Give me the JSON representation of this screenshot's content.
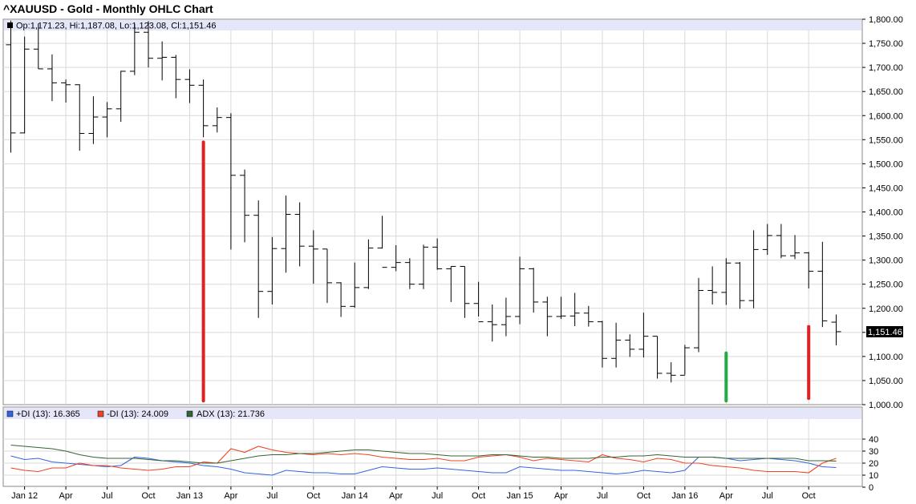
{
  "title": "^XAUUSD - Gold - Monthly OHLC Chart",
  "ohlc_readout": "Op:1,171.23, Hi:1,187.08, Lo:1,123.08, Cl:1,151.46",
  "last_price_label": "1,151.46",
  "colors": {
    "bar": "#000000",
    "grid": "#d9d9d9",
    "infobar": "#e6e6fa",
    "plus_di": "#3366dd",
    "minus_di": "#ee4422",
    "adx": "#336633",
    "marker_red": "#dd2222",
    "marker_green": "#22aa44"
  },
  "chart_data": [
    {
      "type": "ohlc",
      "title": "^XAUUSD - Gold - Monthly OHLC Chart",
      "ylim": [
        1000,
        1800
      ],
      "y_ticks": [
        "1,000.00",
        "1,050.00",
        "1,100.00",
        "1,150.00",
        "1,200.00",
        "1,250.00",
        "1,300.00",
        "1,350.00",
        "1,400.00",
        "1,450.00",
        "1,500.00",
        "1,550.00",
        "1,600.00",
        "1,650.00",
        "1,700.00",
        "1,750.00",
        "1,800.00"
      ],
      "x_labels": [
        "Jan 12",
        "Apr",
        "Jul",
        "Oct",
        "Jan 13",
        "Apr",
        "Jul",
        "Oct",
        "Jan 14",
        "Apr",
        "Jul",
        "Oct",
        "Jan 15",
        "Apr",
        "Jul",
        "Oct",
        "Jan 16",
        "Apr",
        "Jul",
        "Oct"
      ],
      "start_month": "2011-12",
      "bars": [
        [
          1747,
          1797,
          1523,
          1564
        ],
        [
          1564,
          1764,
          1563,
          1738
        ],
        [
          1738,
          1791,
          1697,
          1697
        ],
        [
          1697,
          1727,
          1630,
          1668
        ],
        [
          1668,
          1675,
          1627,
          1664
        ],
        [
          1664,
          1665,
          1527,
          1563
        ],
        [
          1563,
          1640,
          1541,
          1597
        ],
        [
          1597,
          1628,
          1555,
          1614
        ],
        [
          1614,
          1693,
          1587,
          1692
        ],
        [
          1692,
          1790,
          1684,
          1773
        ],
        [
          1773,
          1796,
          1700,
          1719
        ],
        [
          1719,
          1754,
          1673,
          1721
        ],
        [
          1721,
          1726,
          1636,
          1675
        ],
        [
          1675,
          1696,
          1626,
          1663
        ],
        [
          1663,
          1675,
          1555,
          1579
        ],
        [
          1579,
          1617,
          1565,
          1596
        ],
        [
          1596,
          1605,
          1322,
          1476
        ],
        [
          1476,
          1488,
          1337,
          1393
        ],
        [
          1393,
          1424,
          1180,
          1235
        ],
        [
          1235,
          1348,
          1208,
          1324
        ],
        [
          1324,
          1434,
          1274,
          1395
        ],
        [
          1395,
          1420,
          1287,
          1329
        ],
        [
          1329,
          1362,
          1251,
          1323
        ],
        [
          1323,
          1323,
          1211,
          1253
        ],
        [
          1253,
          1254,
          1182,
          1204
        ],
        [
          1204,
          1295,
          1201,
          1243
        ],
        [
          1243,
          1343,
          1240,
          1325
        ],
        [
          1325,
          1392,
          1324,
          1285
        ],
        [
          1285,
          1331,
          1277,
          1295
        ],
        [
          1295,
          1304,
          1240,
          1250
        ],
        [
          1250,
          1332,
          1240,
          1327
        ],
        [
          1327,
          1345,
          1280,
          1282
        ],
        [
          1282,
          1287,
          1213,
          1287
        ],
        [
          1287,
          1287,
          1180,
          1210
        ],
        [
          1210,
          1255,
          1183,
          1172
        ],
        [
          1172,
          1208,
          1131,
          1166
        ],
        [
          1166,
          1222,
          1142,
          1183
        ],
        [
          1183,
          1307,
          1167,
          1282
        ],
        [
          1282,
          1284,
          1191,
          1213
        ],
        [
          1213,
          1224,
          1142,
          1183
        ],
        [
          1183,
          1224,
          1178,
          1184
        ],
        [
          1184,
          1232,
          1163,
          1190
        ],
        [
          1190,
          1205,
          1162,
          1172
        ],
        [
          1172,
          1174,
          1077,
          1096
        ],
        [
          1096,
          1170,
          1077,
          1134
        ],
        [
          1134,
          1146,
          1099,
          1115
        ],
        [
          1115,
          1191,
          1098,
          1142
        ],
        [
          1142,
          1142,
          1054,
          1065
        ],
        [
          1065,
          1088,
          1046,
          1061
        ],
        [
          1061,
          1124,
          1062,
          1118
        ],
        [
          1118,
          1263,
          1109,
          1237
        ],
        [
          1237,
          1287,
          1208,
          1233
        ],
        [
          1233,
          1304,
          1207,
          1294
        ],
        [
          1294,
          1296,
          1199,
          1216
        ],
        [
          1216,
          1362,
          1200,
          1322
        ],
        [
          1322,
          1375,
          1311,
          1351
        ],
        [
          1351,
          1375,
          1304,
          1309
        ],
        [
          1309,
          1352,
          1302,
          1315
        ],
        [
          1315,
          1317,
          1241,
          1277
        ],
        [
          1277,
          1338,
          1161,
          1174
        ],
        [
          1171.23,
          1187.08,
          1123.08,
          1151.46
        ]
      ],
      "markers": [
        {
          "month_index": 14,
          "top": 1545,
          "bottom": 1008,
          "color": "red"
        },
        {
          "month_index": 52,
          "top": 1107,
          "bottom": 1008,
          "color": "green"
        },
        {
          "month_index": 58,
          "top": 1162,
          "bottom": 1013,
          "color": "red"
        }
      ]
    },
    {
      "type": "line",
      "ylim": [
        0,
        40
      ],
      "y_ticks": [
        "0",
        "10",
        "20",
        "30",
        "40"
      ],
      "legend": [
        "+DI (13): 16.365",
        "-DI (13): 24.009",
        "ADX (13): 21.736"
      ],
      "series": [
        {
          "name": "+DI (13)",
          "color": "#3366dd",
          "values": [
            26,
            23,
            24,
            21,
            20,
            19,
            18,
            17,
            18,
            25,
            24,
            22,
            21,
            20,
            18,
            17,
            15,
            12,
            11,
            10,
            14,
            13,
            12,
            12,
            11,
            11,
            14,
            17,
            16,
            15,
            15,
            16,
            15,
            14,
            13,
            12,
            12,
            17,
            16,
            15,
            14,
            14,
            13,
            12,
            11,
            12,
            14,
            13,
            12,
            14,
            25,
            25,
            24,
            22,
            23,
            24,
            23,
            22,
            20,
            17,
            16.365
          ]
        },
        {
          "name": "-DI (13)",
          "color": "#ee4422",
          "values": [
            16,
            14,
            13,
            16,
            16,
            20,
            18,
            18,
            16,
            15,
            14,
            15,
            17,
            17,
            21,
            20,
            32,
            29,
            34,
            31,
            29,
            28,
            27,
            28,
            27,
            28,
            27,
            25,
            24,
            23,
            23,
            24,
            22,
            22,
            25,
            26,
            27,
            25,
            22,
            24,
            23,
            22,
            21,
            27,
            24,
            23,
            21,
            24,
            23,
            20,
            20,
            18,
            17,
            16,
            14,
            13,
            13,
            13,
            12,
            20,
            24.009
          ]
        },
        {
          "name": "ADX (13)",
          "color": "#336633",
          "values": [
            35,
            34,
            33,
            32,
            30,
            27,
            25,
            24,
            24,
            24,
            23,
            22,
            22,
            21,
            20,
            20,
            22,
            24,
            26,
            27,
            27,
            28,
            28,
            29,
            30,
            31,
            31,
            30,
            29,
            28,
            28,
            27,
            26,
            26,
            26,
            27,
            27,
            26,
            25,
            25,
            24,
            24,
            24,
            25,
            25,
            26,
            26,
            27,
            26,
            25,
            25,
            25,
            24,
            24,
            24,
            24,
            24,
            24,
            22,
            22,
            21.736
          ]
        }
      ]
    }
  ]
}
